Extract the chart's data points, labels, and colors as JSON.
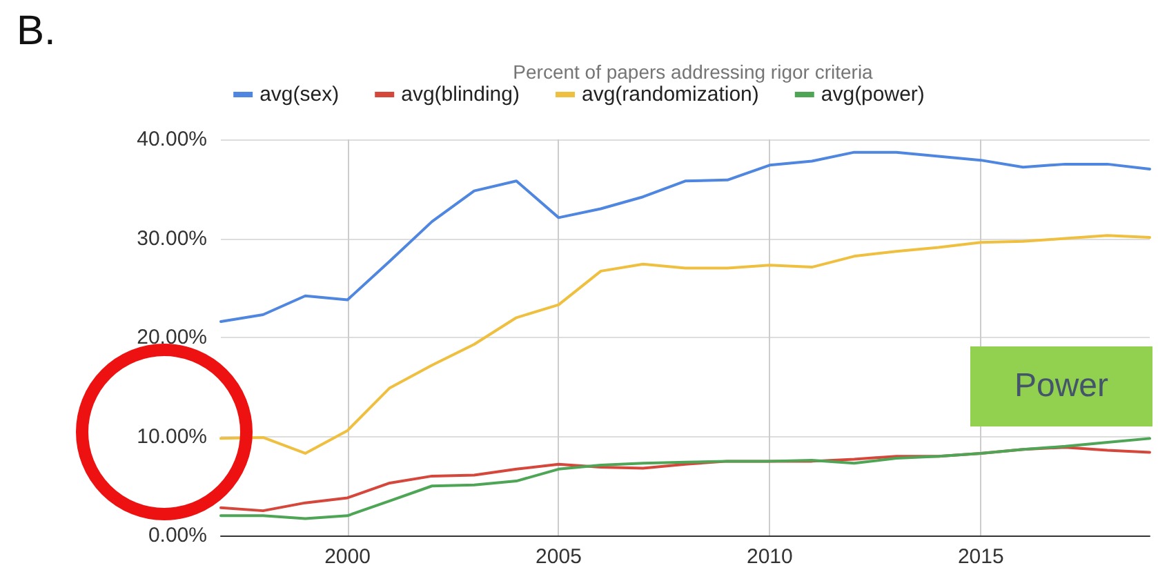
{
  "chart_data": {
    "type": "line",
    "title": "Percent of papers addressing rigor criteria",
    "annotations": [
      "B.",
      "Power"
    ],
    "x": [
      1997,
      1998,
      1999,
      2000,
      2001,
      2002,
      2003,
      2004,
      2005,
      2006,
      2007,
      2008,
      2009,
      2010,
      2011,
      2012,
      2013,
      2014,
      2015,
      2016,
      2017,
      2018,
      2019
    ],
    "series": [
      {
        "name": "avg(sex)",
        "color": "#4f86df",
        "values": [
          21.6,
          22.3,
          24.2,
          23.8,
          27.7,
          31.7,
          34.8,
          35.8,
          32.1,
          33.0,
          34.2,
          35.8,
          35.9,
          37.4,
          37.8,
          38.7,
          38.7,
          38.3,
          37.9,
          37.2,
          37.5,
          37.5,
          37.0
        ]
      },
      {
        "name": "avg(blinding)",
        "color": "#d5473b",
        "values": [
          2.8,
          2.5,
          3.3,
          3.8,
          5.3,
          6.0,
          6.1,
          6.7,
          7.2,
          6.9,
          6.8,
          7.2,
          7.5,
          7.5,
          7.5,
          7.7,
          8.0,
          8.0,
          8.3,
          8.7,
          8.9,
          8.6,
          8.4
        ]
      },
      {
        "name": "avg(randomization)",
        "color": "#efc040",
        "values": [
          9.8,
          9.9,
          8.3,
          10.6,
          14.9,
          17.2,
          19.3,
          22.0,
          23.3,
          26.7,
          27.4,
          27.0,
          27.0,
          27.3,
          27.1,
          28.2,
          28.7,
          29.1,
          29.6,
          29.7,
          30.0,
          30.3,
          30.1
        ]
      },
      {
        "name": "avg(power)",
        "color": "#4ea556",
        "values": [
          2.0,
          2.0,
          1.7,
          2.0,
          3.5,
          5.0,
          5.1,
          5.5,
          6.7,
          7.1,
          7.3,
          7.4,
          7.5,
          7.5,
          7.6,
          7.3,
          7.8,
          8.0,
          8.3,
          8.7,
          9.0,
          9.4,
          9.8
        ]
      }
    ],
    "xlim": [
      1997,
      2019
    ],
    "xticks": [
      2000,
      2005,
      2010,
      2015
    ],
    "ylim": [
      0,
      40
    ],
    "yticks": [
      {
        "value": 0,
        "label": "0.00%"
      },
      {
        "value": 10,
        "label": "10.00%"
      },
      {
        "value": 20,
        "label": "20.00%"
      },
      {
        "value": 30,
        "label": "30.00%"
      },
      {
        "value": 40,
        "label": "40.00%"
      }
    ],
    "grid": true,
    "legend": "top",
    "marker": "none",
    "line_style": "solid"
  }
}
